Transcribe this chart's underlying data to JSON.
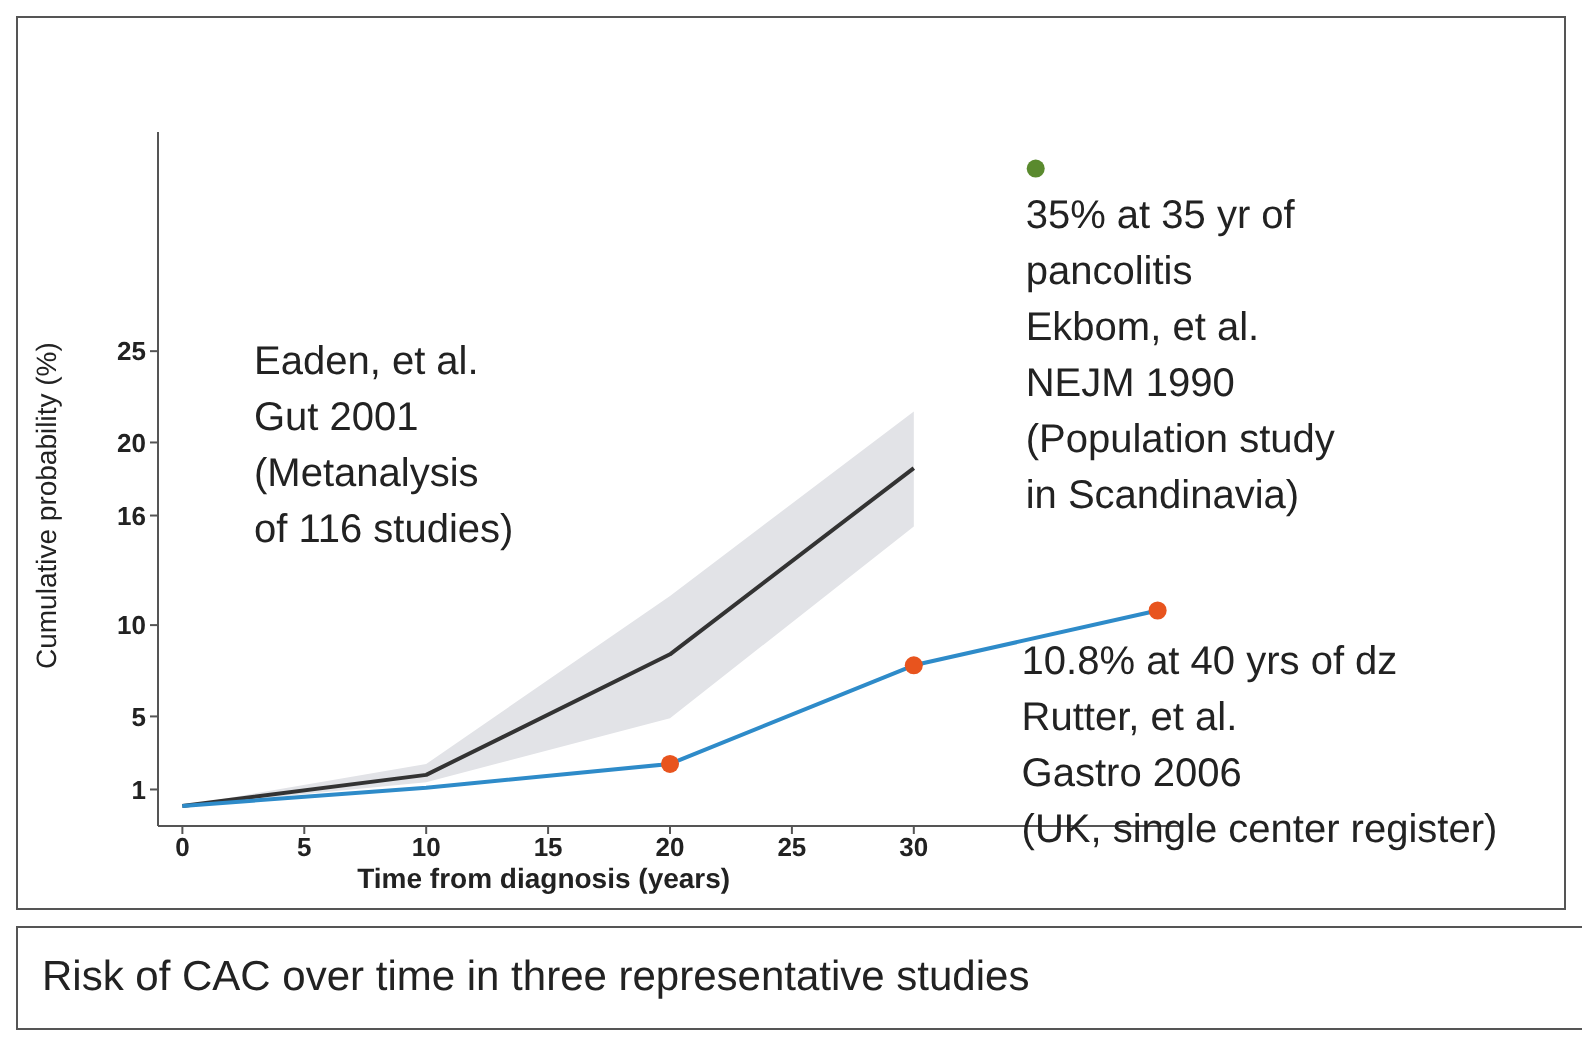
{
  "chart_data": {
    "type": "line",
    "xlabel": "Time from diagnosis (years)",
    "ylabel": "Cumulative probability (%)",
    "xlim": [
      -1,
      41
    ],
    "xticks": [
      0,
      5,
      10,
      15,
      20,
      25,
      30
    ],
    "ylim": [
      -1,
      37
    ],
    "yticks": [
      1,
      5,
      10,
      16,
      20,
      25
    ],
    "series": [
      {
        "color": "#333333",
        "x": [
          0,
          10,
          20,
          30
        ],
        "values": [
          0.1,
          1.8,
          8.4,
          18.6
        ],
        "lower": [
          0.1,
          1.4,
          4.9,
          15.4
        ],
        "upper": [
          0.1,
          2.4,
          11.6,
          21.7
        ],
        "marker": "none"
      },
      {
        "color": "#2e8bc9",
        "x": [
          0,
          10,
          20,
          30,
          40
        ],
        "values": [
          0.1,
          1.1,
          2.4,
          7.8,
          10.8
        ],
        "marker": "none"
      },
      {
        "type": "scatter",
        "color": "#e8541e",
        "x": [
          20,
          30,
          40
        ],
        "values": [
          2.4,
          7.8,
          10.8
        ],
        "marker": "circle"
      },
      {
        "type": "scatter",
        "color": "#5a8a2e",
        "x": [
          35
        ],
        "values": [
          35
        ],
        "marker": "circle"
      }
    ],
    "annotations": [
      "Eaden, et al.\nGut 2001\n(Metanalysis\nof 116 studies)",
      {
        "text": "35% at 35 yr of\npancolitis\nEkbom, et al.\nNEJM 1990\n(Population study\nin Scandinavia)",
        "x": 35,
        "y": 35
      },
      {
        "text": "10.8% at 40 yrs of dz\nRutter, et al.\nGastro 2006\n(UK, single center register)",
        "x": 40,
        "y": 10.8
      },
      "Risk of CAC over time in three representative studies"
    ],
    "legend": false
  }
}
